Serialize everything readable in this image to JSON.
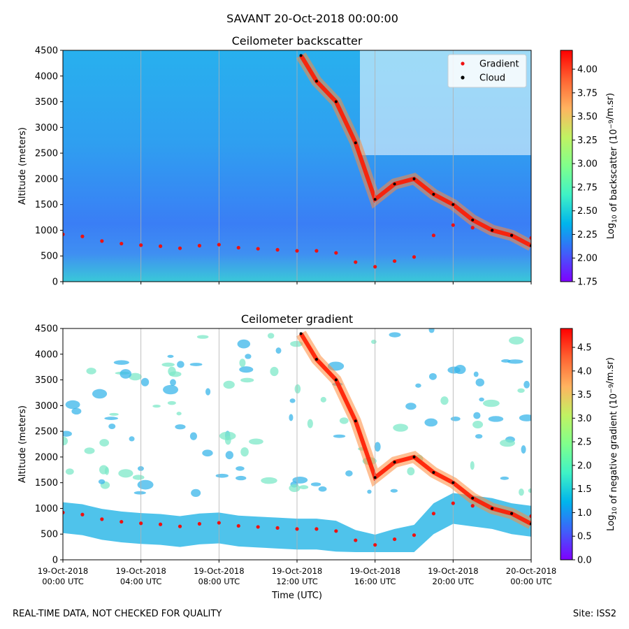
{
  "title": "SAVANT 20-Oct-2018 00:00:00",
  "footer": {
    "left": "REAL-TIME DATA, NOT CHECKED FOR QUALITY",
    "right": "Site: ISS2"
  },
  "x_axis": {
    "label": "Time (UTC)",
    "ticks": [
      {
        "line1": "19-Oct-2018",
        "line2": "00:00 UTC",
        "hour": 0
      },
      {
        "line1": "19-Oct-2018",
        "line2": "04:00 UTC",
        "hour": 4
      },
      {
        "line1": "19-Oct-2018",
        "line2": "08:00 UTC",
        "hour": 8
      },
      {
        "line1": "19-Oct-2018",
        "line2": "12:00 UTC",
        "hour": 12
      },
      {
        "line1": "19-Oct-2018",
        "line2": "16:00 UTC",
        "hour": 16
      },
      {
        "line1": "19-Oct-2018",
        "line2": "20:00 UTC",
        "hour": 20
      },
      {
        "line1": "20-Oct-2018",
        "line2": "00:00 UTC",
        "hour": 24
      }
    ],
    "range_hours": [
      0,
      24
    ]
  },
  "colors": {
    "gradient_marker": "#ee1111",
    "cloud_marker": "#000000",
    "colormap": [
      "#7f00ff",
      "#3f60fa",
      "#00b4ec",
      "#3ff2c6",
      "#80ff8c",
      "#c1f262",
      "#ffb360",
      "#ff6231",
      "#ff0000"
    ]
  },
  "chart_data": [
    {
      "type": "heatmap",
      "title": "Ceilometer backscatter",
      "ylabel": "Altitude (meters)",
      "ylim": [
        0,
        4500
      ],
      "yticks": [
        "0",
        "500",
        "1000",
        "1500",
        "2000",
        "2500",
        "3000",
        "3500",
        "4000",
        "4500"
      ],
      "colorbar": {
        "label_main": "Log",
        "label_sub": "10",
        "label_rest": " of backscatter (10",
        "label_sup": "−9",
        "label_end": "/m.sr)",
        "range": [
          1.75,
          4.2
        ],
        "ticks": [
          "1.75",
          "2.00",
          "2.25",
          "2.50",
          "2.75",
          "3.00",
          "3.25",
          "3.50",
          "3.75",
          "4.00"
        ]
      },
      "legend": {
        "placement": "top-right",
        "entries": [
          "Gradient",
          "Cloud"
        ]
      },
      "gradient_series": [
        [
          0,
          920
        ],
        [
          1,
          880
        ],
        [
          2,
          790
        ],
        [
          3,
          740
        ],
        [
          4,
          710
        ],
        [
          5,
          690
        ],
        [
          6,
          650
        ],
        [
          7,
          700
        ],
        [
          8,
          720
        ],
        [
          9,
          660
        ],
        [
          10,
          640
        ],
        [
          11,
          620
        ],
        [
          12,
          600
        ],
        [
          13,
          600
        ],
        [
          14,
          560
        ],
        [
          15,
          380
        ],
        [
          16,
          290
        ],
        [
          17,
          400
        ],
        [
          18,
          480
        ],
        [
          19,
          900
        ],
        [
          20,
          1100
        ],
        [
          21,
          1050
        ],
        [
          22,
          1000
        ],
        [
          23,
          900
        ],
        [
          24,
          850
        ]
      ],
      "cloud_series": [
        [
          12.2,
          4400
        ],
        [
          13,
          3900
        ],
        [
          14,
          3500
        ],
        [
          15,
          2700
        ],
        [
          16,
          1600
        ],
        [
          17,
          1900
        ],
        [
          18,
          2000
        ],
        [
          19,
          1700
        ],
        [
          20,
          1500
        ],
        [
          21,
          1200
        ],
        [
          22,
          1000
        ],
        [
          23,
          900
        ],
        [
          24,
          700
        ]
      ]
    },
    {
      "type": "heatmap",
      "title": "Ceilometer gradient",
      "ylabel": "Altitude (meters)",
      "ylim": [
        0,
        4500
      ],
      "yticks": [
        "0",
        "500",
        "1000",
        "1500",
        "2000",
        "2500",
        "3000",
        "3500",
        "4000",
        "4500"
      ],
      "colorbar": {
        "label_main": "Log",
        "label_sub": "10",
        "label_rest": " of negative gradient (10",
        "label_sup": "−9",
        "label_end": "/m.sr)",
        "range": [
          0,
          4.9
        ],
        "ticks": [
          "0.0",
          "0.5",
          "1.0",
          "1.5",
          "2.0",
          "2.5",
          "3.0",
          "3.5",
          "4.0",
          "4.5"
        ]
      },
      "gradient_series": [
        [
          0,
          920
        ],
        [
          1,
          880
        ],
        [
          2,
          790
        ],
        [
          3,
          740
        ],
        [
          4,
          710
        ],
        [
          5,
          690
        ],
        [
          6,
          650
        ],
        [
          7,
          700
        ],
        [
          8,
          720
        ],
        [
          9,
          660
        ],
        [
          10,
          640
        ],
        [
          11,
          620
        ],
        [
          12,
          600
        ],
        [
          13,
          600
        ],
        [
          14,
          560
        ],
        [
          15,
          380
        ],
        [
          16,
          290
        ],
        [
          17,
          400
        ],
        [
          18,
          480
        ],
        [
          19,
          900
        ],
        [
          20,
          1100
        ],
        [
          21,
          1050
        ],
        [
          22,
          1000
        ],
        [
          23,
          900
        ],
        [
          24,
          850
        ]
      ],
      "cloud_series": [
        [
          12.2,
          4400
        ],
        [
          13,
          3900
        ],
        [
          14,
          3500
        ],
        [
          15,
          2700
        ],
        [
          16,
          1600
        ],
        [
          17,
          1900
        ],
        [
          18,
          2000
        ],
        [
          19,
          1700
        ],
        [
          20,
          1500
        ],
        [
          21,
          1200
        ],
        [
          22,
          1000
        ],
        [
          23,
          900
        ],
        [
          24,
          700
        ]
      ]
    }
  ]
}
